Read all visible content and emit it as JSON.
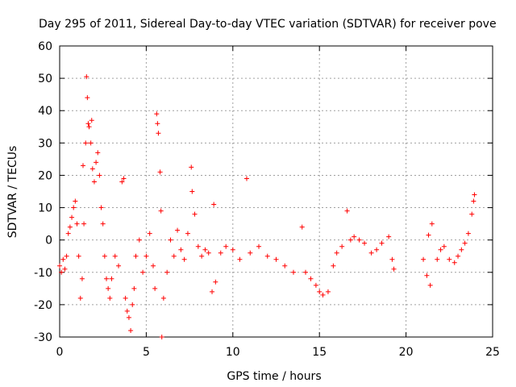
{
  "chart_data": {
    "type": "scatter",
    "title": "Day 295 of 2011, Sidereal Day-to-day VTEC variation (SDTVAR) for receiver pove",
    "xlabel": "GPS time / hours",
    "ylabel": "SDTVAR / TECUs",
    "xlim": [
      0,
      25
    ],
    "ylim": [
      -30,
      60
    ],
    "xticks": [
      0,
      5,
      10,
      15,
      20,
      25
    ],
    "yticks": [
      -30,
      -20,
      -10,
      0,
      10,
      20,
      30,
      40,
      50,
      60
    ],
    "grid": true,
    "marker": "+",
    "color": "#ff0000",
    "series": [
      {
        "name": "SDTVAR",
        "points": [
          [
            0.0,
            -8
          ],
          [
            0.1,
            -10
          ],
          [
            0.2,
            -6
          ],
          [
            0.3,
            -9
          ],
          [
            0.4,
            -5
          ],
          [
            0.5,
            2
          ],
          [
            0.6,
            4
          ],
          [
            0.7,
            7
          ],
          [
            0.8,
            10
          ],
          [
            0.9,
            12
          ],
          [
            1.0,
            5
          ],
          [
            1.1,
            -5
          ],
          [
            1.2,
            -18
          ],
          [
            1.3,
            -12
          ],
          [
            1.35,
            23
          ],
          [
            1.4,
            5
          ],
          [
            1.5,
            30
          ],
          [
            1.55,
            50.5
          ],
          [
            1.6,
            44
          ],
          [
            1.65,
            36
          ],
          [
            1.7,
            35
          ],
          [
            1.8,
            30
          ],
          [
            1.85,
            37
          ],
          [
            1.9,
            22
          ],
          [
            2.0,
            18
          ],
          [
            2.1,
            24
          ],
          [
            2.2,
            27
          ],
          [
            2.3,
            20
          ],
          [
            2.4,
            10
          ],
          [
            2.5,
            5
          ],
          [
            2.6,
            -5
          ],
          [
            2.7,
            -12
          ],
          [
            2.8,
            -15
          ],
          [
            2.9,
            -18
          ],
          [
            3.0,
            -12
          ],
          [
            3.2,
            -5
          ],
          [
            3.4,
            -8
          ],
          [
            3.6,
            18
          ],
          [
            3.7,
            19
          ],
          [
            3.8,
            -18
          ],
          [
            3.9,
            -22
          ],
          [
            4.0,
            -24
          ],
          [
            4.1,
            -28
          ],
          [
            4.2,
            -20
          ],
          [
            4.3,
            -15
          ],
          [
            4.4,
            -5
          ],
          [
            4.6,
            0
          ],
          [
            4.8,
            -10
          ],
          [
            5.0,
            -5
          ],
          [
            5.2,
            2
          ],
          [
            5.4,
            -8
          ],
          [
            5.5,
            -15
          ],
          [
            5.6,
            39
          ],
          [
            5.65,
            36
          ],
          [
            5.7,
            33
          ],
          [
            5.8,
            21
          ],
          [
            5.85,
            9
          ],
          [
            5.9,
            -30
          ],
          [
            6.0,
            -18
          ],
          [
            6.2,
            -10
          ],
          [
            6.4,
            0
          ],
          [
            6.6,
            -5
          ],
          [
            6.8,
            3
          ],
          [
            7.0,
            -3
          ],
          [
            7.2,
            -6
          ],
          [
            7.4,
            2
          ],
          [
            7.6,
            22.5
          ],
          [
            7.65,
            15
          ],
          [
            7.8,
            8
          ],
          [
            8.0,
            -2
          ],
          [
            8.2,
            -5
          ],
          [
            8.4,
            -3
          ],
          [
            8.6,
            -4
          ],
          [
            8.8,
            -16
          ],
          [
            8.9,
            11
          ],
          [
            9.0,
            -13
          ],
          [
            9.3,
            -4
          ],
          [
            9.6,
            -2
          ],
          [
            10.0,
            -3
          ],
          [
            10.4,
            -6
          ],
          [
            10.8,
            19
          ],
          [
            11.0,
            -4
          ],
          [
            11.5,
            -2
          ],
          [
            12.0,
            -5
          ],
          [
            12.5,
            -6
          ],
          [
            13.0,
            -8
          ],
          [
            13.5,
            -10
          ],
          [
            14.0,
            4
          ],
          [
            14.2,
            -10
          ],
          [
            14.5,
            -12
          ],
          [
            14.8,
            -14
          ],
          [
            15.0,
            -16
          ],
          [
            15.2,
            -17
          ],
          [
            15.5,
            -16
          ],
          [
            15.8,
            -8
          ],
          [
            16.0,
            -4
          ],
          [
            16.3,
            -2
          ],
          [
            16.6,
            9
          ],
          [
            16.8,
            0
          ],
          [
            17.0,
            1
          ],
          [
            17.3,
            0
          ],
          [
            17.6,
            -1
          ],
          [
            18.0,
            -4
          ],
          [
            18.3,
            -3
          ],
          [
            18.6,
            -1
          ],
          [
            19.0,
            1
          ],
          [
            19.2,
            -6
          ],
          [
            19.3,
            -9
          ],
          [
            21.0,
            -6
          ],
          [
            21.2,
            -11
          ],
          [
            21.3,
            1.5
          ],
          [
            21.4,
            -14
          ],
          [
            21.5,
            5
          ],
          [
            21.8,
            -6
          ],
          [
            22.0,
            -3
          ],
          [
            22.2,
            -2
          ],
          [
            22.5,
            -6
          ],
          [
            22.8,
            -7
          ],
          [
            23.0,
            -5
          ],
          [
            23.2,
            -3
          ],
          [
            23.4,
            -1
          ],
          [
            23.6,
            2
          ],
          [
            23.8,
            8
          ],
          [
            23.9,
            12
          ],
          [
            23.95,
            14
          ]
        ]
      }
    ]
  }
}
